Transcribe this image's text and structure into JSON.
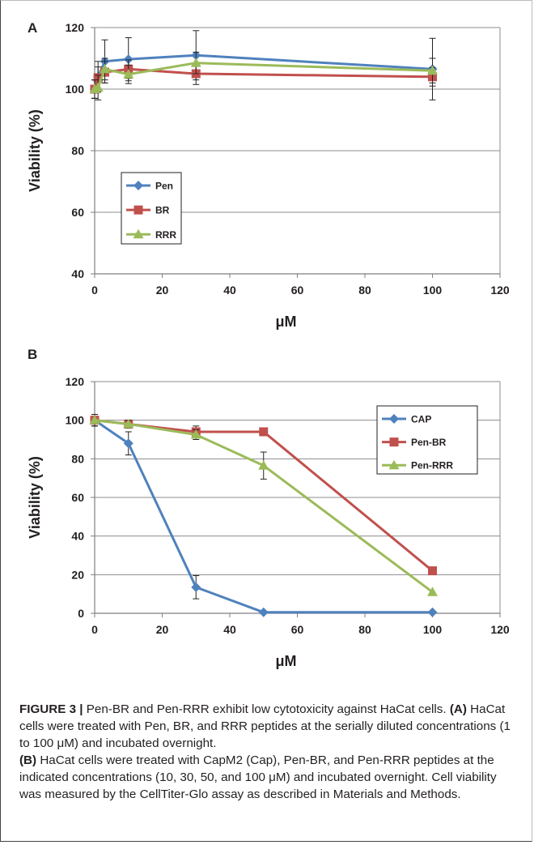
{
  "chart_data": [
    {
      "panel": "A",
      "type": "line",
      "xlabel": "μM",
      "ylabel": "Viability (%)",
      "xlim": [
        0,
        120
      ],
      "ylim": [
        40,
        120
      ],
      "xticks": [
        0,
        20,
        40,
        60,
        80,
        100,
        120
      ],
      "yticks": [
        40,
        60,
        80,
        100,
        120
      ],
      "grid": "horizontal",
      "legend": "center-left",
      "series": [
        {
          "name": "Pen",
          "color": "#4f81bd",
          "marker": "diamond",
          "x": [
            0,
            1,
            3,
            10,
            30,
            100
          ],
          "y": [
            100,
            104,
            109,
            109.7,
            111,
            106.5
          ],
          "err": [
            3,
            5,
            7,
            7,
            8,
            10
          ]
        },
        {
          "name": "BR",
          "color": "#c0504d",
          "marker": "square",
          "x": [
            0,
            1,
            3,
            10,
            30,
            100
          ],
          "y": [
            100,
            103.7,
            105.5,
            106.5,
            105,
            104
          ],
          "err": [
            3,
            3.5,
            3.5,
            3,
            3.5,
            3
          ]
        },
        {
          "name": "RRR",
          "color": "#9bbb59",
          "marker": "triangle",
          "x": [
            0,
            1,
            3,
            10,
            30,
            100
          ],
          "y": [
            100,
            100.5,
            106.5,
            104.8,
            108.5,
            106
          ],
          "err": [
            3,
            4,
            3.5,
            3,
            3.5,
            4
          ]
        }
      ]
    },
    {
      "panel": "B",
      "type": "line",
      "xlabel": "μM",
      "ylabel": "Viability (%)",
      "xlim": [
        0,
        120
      ],
      "ylim": [
        0,
        120
      ],
      "xticks": [
        0,
        20,
        40,
        60,
        80,
        100,
        120
      ],
      "yticks": [
        0,
        20,
        40,
        60,
        80,
        100,
        120
      ],
      "grid": "horizontal",
      "legend": "top-right",
      "series": [
        {
          "name": "CAP",
          "color": "#4f81bd",
          "marker": "diamond",
          "x": [
            0,
            10,
            30,
            50,
            100
          ],
          "y": [
            100,
            88,
            13.5,
            0.5,
            0.5
          ],
          "err": [
            3,
            6,
            6,
            0,
            0
          ]
        },
        {
          "name": "Pen-BR",
          "color": "#c0504d",
          "marker": "square",
          "x": [
            0,
            10,
            30,
            50,
            100
          ],
          "y": [
            100,
            98,
            94,
            94,
            22
          ],
          "err": [
            3,
            2,
            3,
            0,
            0
          ]
        },
        {
          "name": "Pen-RRR",
          "color": "#9bbb59",
          "marker": "triangle",
          "x": [
            0,
            10,
            30,
            50,
            100
          ],
          "y": [
            100,
            98,
            92.5,
            76.5,
            11
          ],
          "err": [
            3,
            2,
            2.5,
            7,
            0
          ]
        }
      ]
    }
  ],
  "caption": {
    "label": "FIGURE 3 |",
    "title": "Pen-BR and Pen-RRR exhibit low cytotoxicity against HaCat cells.",
    "a_label": "(A)",
    "a_text": "HaCat cells were treated with Pen, BR, and RRR peptides at the serially diluted concentrations (1 to 100 μM) and incubated overnight.",
    "b_label": "(B)",
    "b_text": "HaCat cells were treated with CapM2 (Cap), Pen-BR, and Pen-RRR peptides at the indicated concentrations (10, 30, 50, and 100 μM) and incubated overnight. Cell viability was measured by the CellTiter-Glo assay as described in Materials and Methods."
  }
}
